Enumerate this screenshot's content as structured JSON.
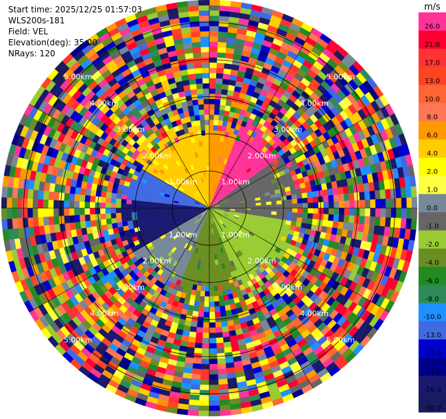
{
  "header": {
    "start_time": "Start time: 2025/12/25 01:57:03",
    "instrument": "WLS200s-181",
    "field": "Field: VEL",
    "elevation": "Elevation(deg): 35.00",
    "nrays": "NRays: 120"
  },
  "colorbar": {
    "unit": "m/s",
    "levels": [
      {
        "label": "26.0",
        "color": "#ff3399"
      },
      {
        "label": "21.0",
        "color": "#ff0033"
      },
      {
        "label": "17.0",
        "color": "#ff3333"
      },
      {
        "label": "13.0",
        "color": "#ff4422"
      },
      {
        "label": "10.0",
        "color": "#ff6633"
      },
      {
        "label": "8.0",
        "color": "#ff7755"
      },
      {
        "label": "6.0",
        "color": "#ff9900"
      },
      {
        "label": "4.0",
        "color": "#ffcc00"
      },
      {
        "label": "2.0",
        "color": "#ffff00"
      },
      {
        "label": "1.0",
        "color": "#ffff44"
      },
      {
        "label": "0.0",
        "color": "#778899"
      },
      {
        "label": "-1.0",
        "color": "#666666"
      },
      {
        "label": "-2.0",
        "color": "#99cc33"
      },
      {
        "label": "-4.0",
        "color": "#6b8e23"
      },
      {
        "label": "-6.0",
        "color": "#228b22"
      },
      {
        "label": "-8.0",
        "color": "#2e8b57"
      },
      {
        "label": "-10.0",
        "color": "#1e90ff"
      },
      {
        "label": "-13.0",
        "color": "#4169e1"
      },
      {
        "label": "-17.0",
        "color": "#0000cd"
      },
      {
        "label": "-21.0",
        "color": "#00008b"
      },
      {
        "label": "-26.0",
        "color": "#191970"
      },
      {
        "label": "-30.0",
        "color": "#1a1a5e"
      }
    ]
  },
  "chart_data": {
    "type": "heatmap",
    "projection": "polar PPI",
    "field": "VEL",
    "units": "m/s",
    "nrays": 120,
    "elevation_deg": 35.0,
    "range_rings_km": [
      1.0,
      2.0,
      3.0,
      4.0,
      5.0
    ],
    "ring_labels": [
      "1.00km",
      "2.00km",
      "3.00km",
      "4.00km",
      "5.00km"
    ],
    "max_range_km": 5.6,
    "pattern": {
      "inner_valid_range_km": 2.3,
      "sectors": [
        {
          "from_deg": 300,
          "to_deg": 360,
          "dominant_value": 4.0
        },
        {
          "from_deg": 0,
          "to_deg": 20,
          "dominant_value": 6.0
        },
        {
          "from_deg": 20,
          "to_deg": 55,
          "dominant_value": 26.0
        },
        {
          "from_deg": 55,
          "to_deg": 100,
          "dominant_value": -1.0
        },
        {
          "from_deg": 100,
          "to_deg": 160,
          "dominant_value": -2.0
        },
        {
          "from_deg": 160,
          "to_deg": 200,
          "dominant_value": -4.0
        },
        {
          "from_deg": 200,
          "to_deg": 240,
          "dominant_value": 0.0
        },
        {
          "from_deg": 240,
          "to_deg": 275,
          "dominant_value": -26.0
        },
        {
          "from_deg": 275,
          "to_deg": 300,
          "dominant_value": -13.0
        }
      ],
      "outer_region": "noise"
    }
  }
}
